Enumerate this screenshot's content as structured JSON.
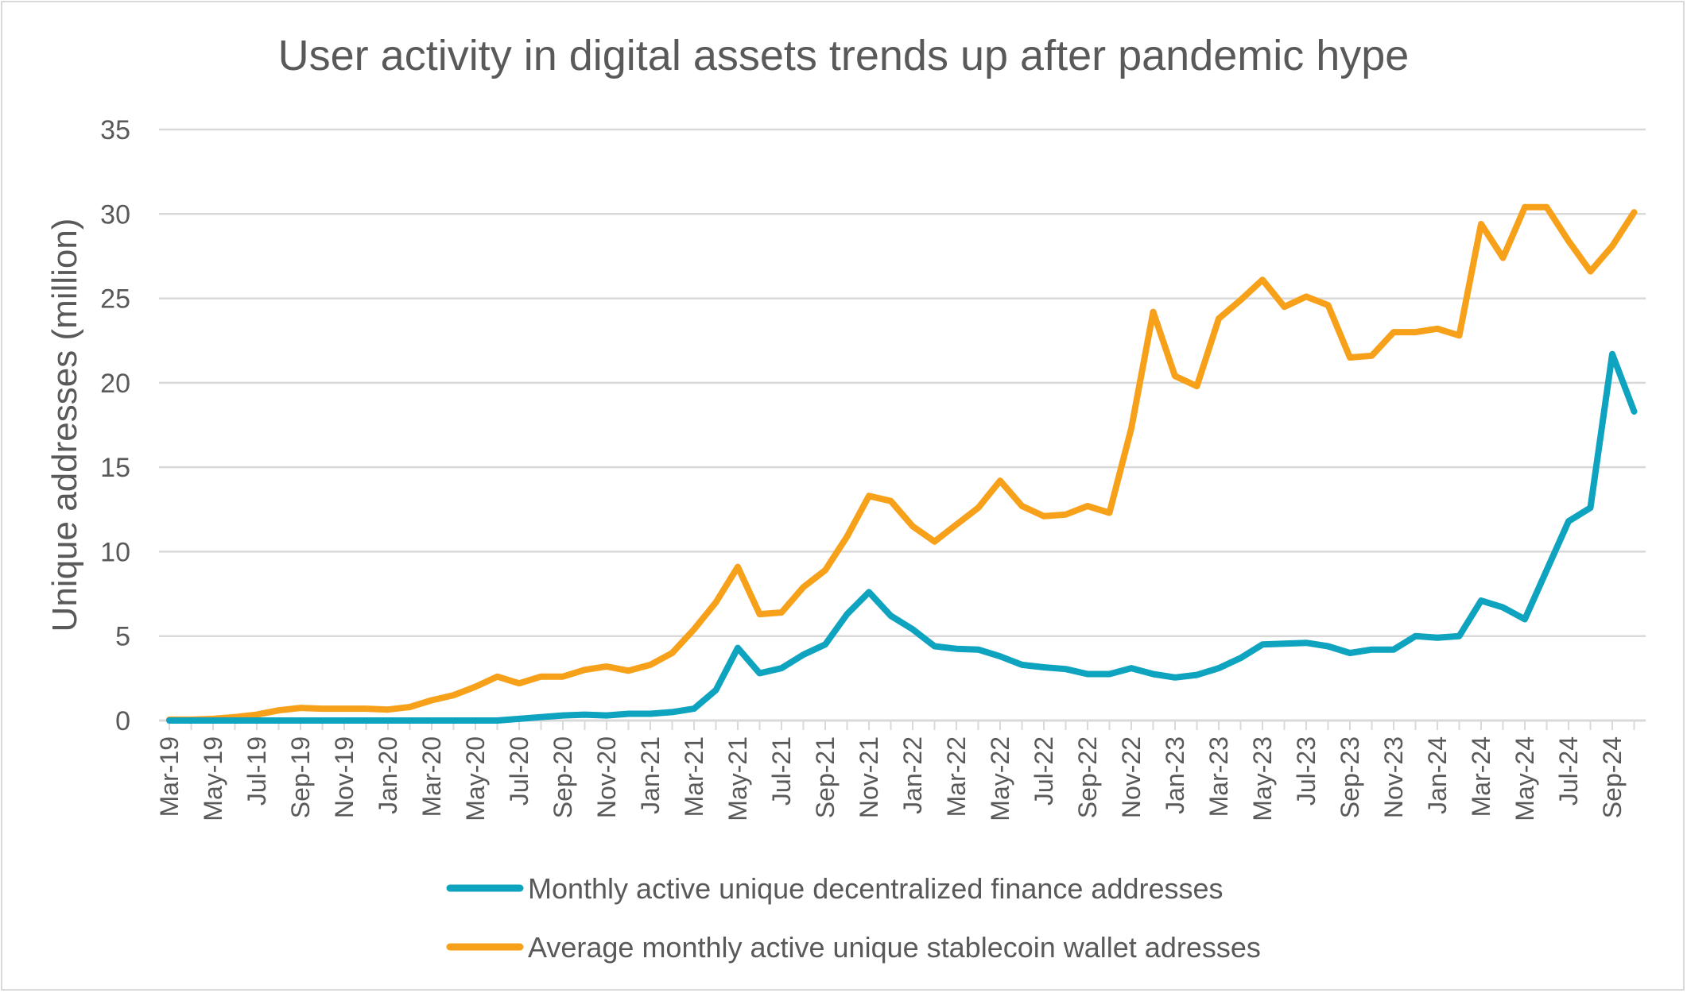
{
  "chart_data": {
    "type": "line",
    "title": "User activity in digital assets trends up after pandemic hype",
    "xlabel": "",
    "ylabel": "Unique addresses (million)",
    "ylim": [
      0,
      35
    ],
    "yticks": [
      "0",
      "5",
      "10",
      "15",
      "20",
      "25",
      "30",
      "35"
    ],
    "grid": "horizontal",
    "legend_position": "bottom",
    "x": [
      "Mar-19",
      "Apr-19",
      "May-19",
      "Jun-19",
      "Jul-19",
      "Aug-19",
      "Sep-19",
      "Oct-19",
      "Nov-19",
      "Dec-19",
      "Jan-20",
      "Feb-20",
      "Mar-20",
      "Apr-20",
      "May-20",
      "Jun-20",
      "Jul-20",
      "Aug-20",
      "Sep-20",
      "Oct-20",
      "Nov-20",
      "Dec-20",
      "Jan-21",
      "Feb-21",
      "Mar-21",
      "Apr-21",
      "May-21",
      "Jun-21",
      "Jul-21",
      "Aug-21",
      "Sep-21",
      "Oct-21",
      "Nov-21",
      "Dec-21",
      "Jan-22",
      "Feb-22",
      "Mar-22",
      "Apr-22",
      "May-22",
      "Jun-22",
      "Jul-22",
      "Aug-22",
      "Sep-22",
      "Oct-22",
      "Nov-22",
      "Dec-22",
      "Jan-23",
      "Feb-23",
      "Mar-23",
      "Apr-23",
      "May-23",
      "Jun-23",
      "Jul-23",
      "Aug-23",
      "Sep-23",
      "Oct-23",
      "Nov-23",
      "Dec-23",
      "Jan-24",
      "Feb-24",
      "Mar-24",
      "Apr-24",
      "May-24",
      "Jun-24",
      "Jul-24",
      "Aug-24",
      "Sep-24",
      "Oct-24"
    ],
    "x_tick_labels": [
      "Mar-19",
      "May-19",
      "Jul-19",
      "Sep-19",
      "Nov-19",
      "Jan-20",
      "Mar-20",
      "May-20",
      "Jul-20",
      "Sep-20",
      "Nov-20",
      "Jan-21",
      "Mar-21",
      "May-21",
      "Jul-21",
      "Sep-21",
      "Nov-21",
      "Jan-22",
      "Mar-22",
      "May-22",
      "Jul-22",
      "Sep-22",
      "Nov-22",
      "Jan-23",
      "Mar-23",
      "May-23",
      "Jul-23",
      "Sep-23",
      "Nov-23",
      "Jan-24",
      "Mar-24",
      "May-24",
      "Jul-24",
      "Sep-24"
    ],
    "series": [
      {
        "name": "Monthly active unique decentralized finance addresses",
        "color": "#0ea3be",
        "values": [
          0.0,
          0.0,
          0.0,
          0.0,
          0.0,
          0.0,
          0.0,
          0.0,
          0.0,
          0.0,
          0.0,
          0.0,
          0.0,
          0.0,
          0.0,
          0.0,
          0.1,
          0.2,
          0.3,
          0.35,
          0.3,
          0.4,
          0.4,
          0.5,
          0.7,
          1.8,
          4.3,
          2.8,
          3.1,
          3.9,
          4.5,
          6.3,
          7.6,
          6.2,
          5.4,
          4.4,
          4.25,
          4.2,
          3.8,
          3.3,
          3.15,
          3.05,
          2.75,
          2.75,
          3.1,
          2.75,
          2.55,
          2.7,
          3.1,
          3.7,
          4.5,
          4.55,
          4.6,
          4.4,
          4.0,
          4.2,
          4.2,
          5.0,
          4.9,
          5.0,
          7.1,
          6.7,
          6.0,
          8.9,
          11.8,
          12.6,
          21.7,
          18.3
        ]
      },
      {
        "name": "Average monthly active unique stablecoin wallet adresses",
        "color": "#f7a11a",
        "values": [
          0.05,
          0.05,
          0.1,
          0.2,
          0.35,
          0.6,
          0.75,
          0.7,
          0.7,
          0.7,
          0.65,
          0.8,
          1.2,
          1.5,
          2.0,
          2.6,
          2.2,
          2.6,
          2.6,
          3.0,
          3.2,
          2.95,
          3.3,
          4.0,
          5.4,
          7.0,
          9.1,
          6.3,
          6.4,
          7.9,
          8.9,
          10.9,
          13.3,
          13.0,
          11.5,
          10.6,
          11.6,
          12.6,
          14.2,
          12.7,
          12.1,
          12.2,
          12.7,
          12.3,
          17.3,
          24.2,
          20.4,
          19.8,
          23.8,
          24.9,
          26.1,
          24.5,
          25.1,
          24.6,
          21.5,
          21.6,
          23.0,
          23.0,
          23.2,
          22.8,
          29.4,
          27.4,
          30.4,
          30.4,
          28.4,
          26.6,
          28.1,
          30.1
        ]
      }
    ]
  }
}
